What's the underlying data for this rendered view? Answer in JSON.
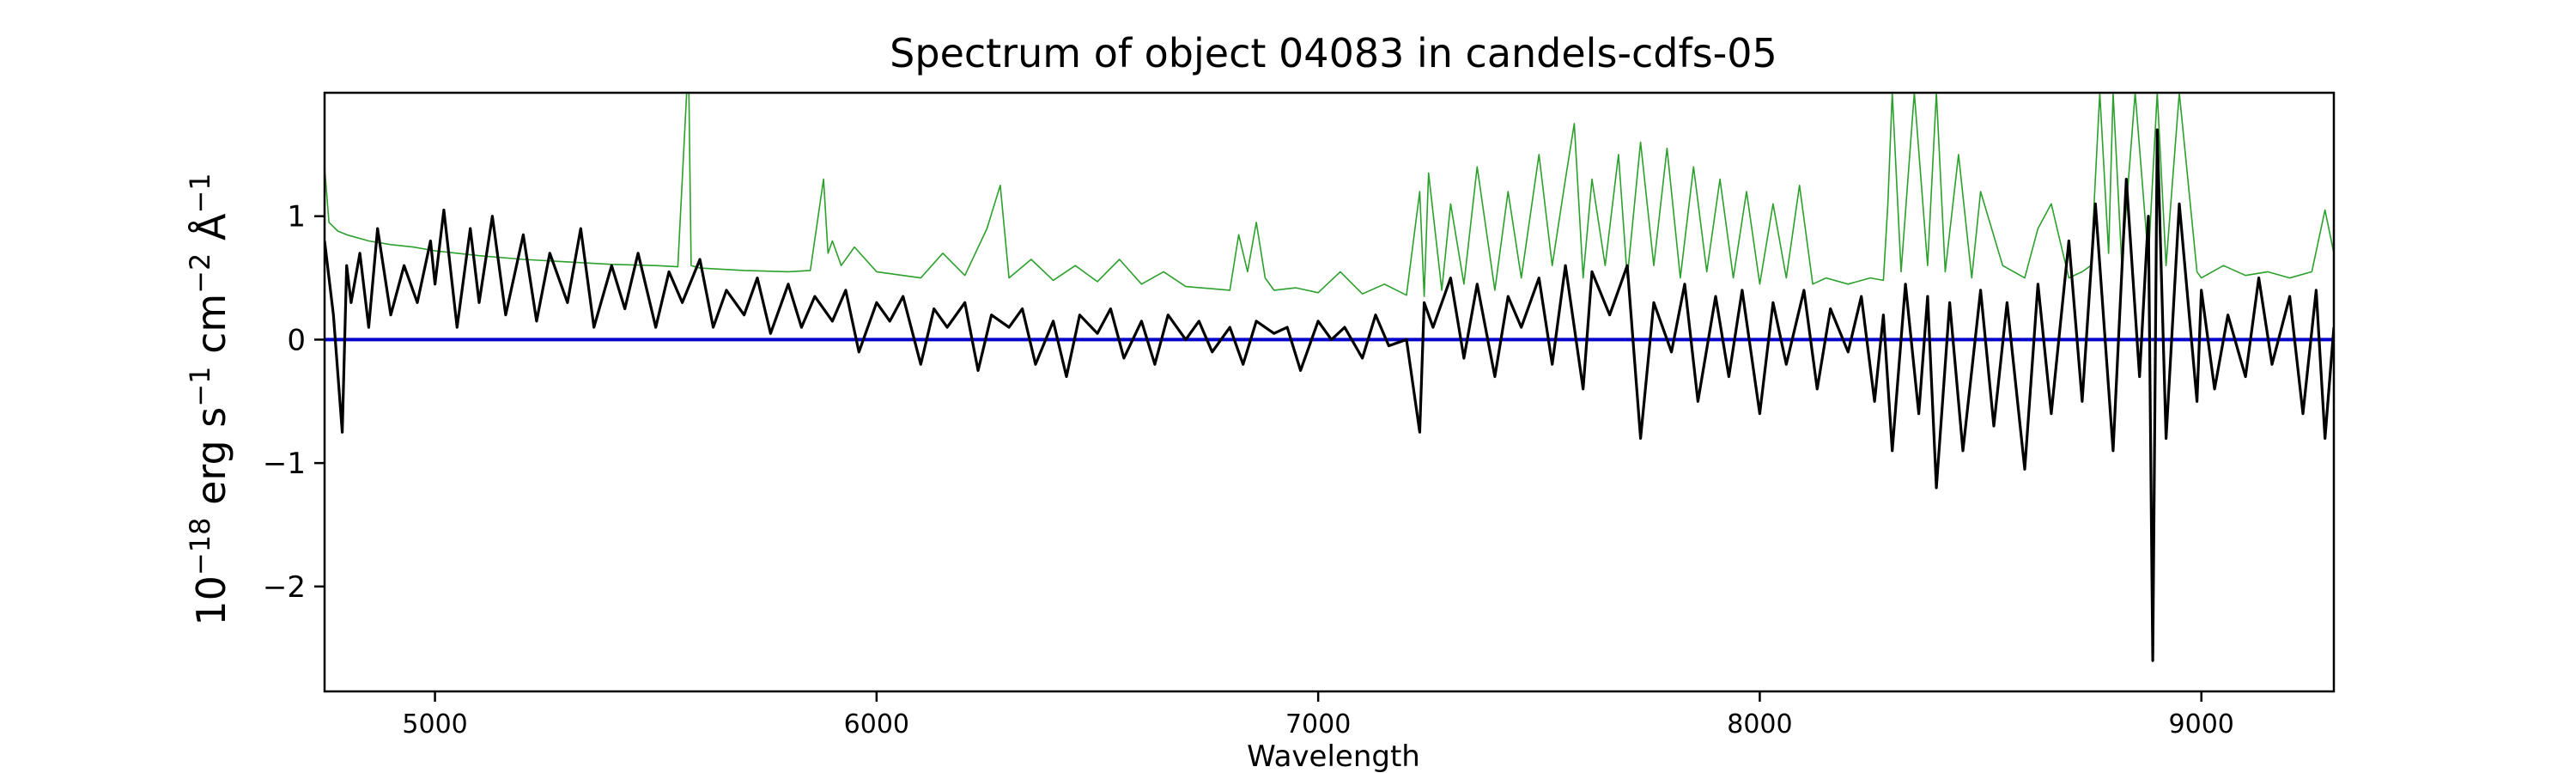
{
  "chart_data": {
    "type": "line",
    "title": "Spectrum of object 04083 in candels-cdfs-05",
    "xlabel": "Wavelength",
    "ylabel": {
      "base": "10",
      "base_exp": "−18",
      "erg": " erg s",
      "s_exp": "−1",
      "cm": " cm",
      "cm_exp": "−2",
      "ang": " Å",
      "ang_exp": "−1"
    },
    "xlim": [
      4750,
      9300
    ],
    "ylim": [
      -2.85,
      2.0
    ],
    "xticks": [
      5000,
      6000,
      7000,
      8000,
      9000
    ],
    "xtick_labels": [
      "5000",
      "6000",
      "7000",
      "8000",
      "9000"
    ],
    "yticks": [
      1,
      0,
      -1,
      -2
    ],
    "ytick_labels": [
      "1",
      "0",
      "−1",
      "−2"
    ],
    "grid": false,
    "colors": {
      "flux": "#000000",
      "error": "#2ca02c",
      "zero": "#0000cc"
    },
    "series": [
      {
        "style": "flux",
        "x": [
          4750,
          4770,
          4790,
          4800,
          4810,
          4830,
          4850,
          4870,
          4900,
          4930,
          4960,
          4990,
          5000,
          5020,
          5050,
          5080,
          5100,
          5130,
          5160,
          5200,
          5230,
          5260,
          5300,
          5330,
          5360,
          5400,
          5430,
          5460,
          5500,
          5530,
          5560,
          5600,
          5630,
          5660,
          5700,
          5730,
          5760,
          5800,
          5830,
          5860,
          5900,
          5930,
          5960,
          6000,
          6030,
          6060,
          6100,
          6130,
          6160,
          6200,
          6230,
          6260,
          6300,
          6330,
          6360,
          6400,
          6430,
          6460,
          6500,
          6530,
          6560,
          6600,
          6630,
          6660,
          6700,
          6730,
          6760,
          6800,
          6830,
          6860,
          6900,
          6930,
          6960,
          7000,
          7030,
          7060,
          7100,
          7130,
          7160,
          7200,
          7230,
          7240,
          7260,
          7300,
          7330,
          7360,
          7400,
          7430,
          7460,
          7500,
          7530,
          7560,
          7600,
          7620,
          7660,
          7700,
          7730,
          7760,
          7800,
          7830,
          7860,
          7900,
          7930,
          7960,
          8000,
          8030,
          8060,
          8100,
          8130,
          8160,
          8200,
          8230,
          8260,
          8280,
          8300,
          8330,
          8360,
          8380,
          8400,
          8430,
          8460,
          8500,
          8530,
          8560,
          8600,
          8630,
          8660,
          8700,
          8730,
          8760,
          8800,
          8830,
          8860,
          8880,
          8890,
          8900,
          8920,
          8950,
          8990,
          9000,
          9030,
          9060,
          9100,
          9130,
          9160,
          9200,
          9230,
          9260,
          9280,
          9300
        ],
        "y": [
          0.8,
          0.2,
          -0.75,
          0.6,
          0.3,
          0.7,
          0.1,
          0.9,
          0.2,
          0.6,
          0.3,
          0.8,
          0.45,
          1.05,
          0.1,
          0.9,
          0.3,
          1.0,
          0.2,
          0.85,
          0.15,
          0.7,
          0.3,
          0.9,
          0.1,
          0.6,
          0.25,
          0.7,
          0.1,
          0.55,
          0.3,
          0.65,
          0.1,
          0.4,
          0.2,
          0.5,
          0.05,
          0.45,
          0.1,
          0.35,
          0.15,
          0.4,
          -0.1,
          0.3,
          0.15,
          0.35,
          -0.2,
          0.25,
          0.1,
          0.3,
          -0.25,
          0.2,
          0.1,
          0.25,
          -0.2,
          0.15,
          -0.3,
          0.2,
          0.05,
          0.25,
          -0.15,
          0.15,
          -0.2,
          0.2,
          0.0,
          0.15,
          -0.1,
          0.1,
          -0.2,
          0.15,
          0.05,
          0.1,
          -0.25,
          0.15,
          0.0,
          0.1,
          -0.15,
          0.2,
          -0.05,
          0.0,
          -0.75,
          0.3,
          0.1,
          0.5,
          -0.15,
          0.45,
          -0.3,
          0.35,
          0.1,
          0.5,
          -0.2,
          0.6,
          -0.4,
          0.55,
          0.2,
          0.6,
          -0.8,
          0.3,
          -0.1,
          0.45,
          -0.5,
          0.35,
          -0.3,
          0.4,
          -0.6,
          0.3,
          -0.2,
          0.4,
          -0.4,
          0.25,
          -0.1,
          0.35,
          -0.5,
          0.2,
          -0.9,
          0.45,
          -0.6,
          0.35,
          -1.2,
          0.3,
          -0.9,
          0.4,
          -0.7,
          0.3,
          -1.05,
          0.45,
          -0.6,
          0.8,
          -0.5,
          1.1,
          -0.9,
          1.3,
          -0.3,
          1.0,
          -2.6,
          1.7,
          -0.8,
          1.1,
          -0.5,
          0.4,
          -0.4,
          0.2,
          -0.3,
          0.5,
          -0.2,
          0.35,
          -0.6,
          0.4,
          -0.8,
          0.1
        ]
      },
      {
        "style": "error",
        "x": [
          4750,
          4760,
          4780,
          4800,
          4850,
          4900,
          4950,
          5000,
          5100,
          5200,
          5300,
          5400,
          5500,
          5550,
          5570,
          5575,
          5580,
          5600,
          5700,
          5800,
          5850,
          5880,
          5890,
          5900,
          5920,
          5950,
          6000,
          6100,
          6150,
          6200,
          6250,
          6280,
          6300,
          6350,
          6400,
          6450,
          6500,
          6550,
          6600,
          6650,
          6700,
          6800,
          6820,
          6840,
          6860,
          6880,
          6900,
          6950,
          7000,
          7050,
          7100,
          7150,
          7200,
          7230,
          7240,
          7250,
          7280,
          7300,
          7330,
          7360,
          7400,
          7430,
          7460,
          7500,
          7530,
          7560,
          7580,
          7600,
          7620,
          7650,
          7680,
          7700,
          7730,
          7760,
          7790,
          7820,
          7850,
          7880,
          7910,
          7940,
          7970,
          8000,
          8030,
          8060,
          8090,
          8120,
          8150,
          8200,
          8250,
          8280,
          8290,
          8300,
          8320,
          8350,
          8380,
          8400,
          8420,
          8450,
          8480,
          8500,
          8550,
          8600,
          8630,
          8660,
          8680,
          8700,
          8730,
          8750,
          8770,
          8790,
          8800,
          8820,
          8850,
          8880,
          8900,
          8920,
          8950,
          8990,
          9000,
          9050,
          9100,
          9150,
          9200,
          9250,
          9280,
          9300
        ],
        "y": [
          1.4,
          0.95,
          0.88,
          0.85,
          0.8,
          0.77,
          0.75,
          0.72,
          0.68,
          0.65,
          0.63,
          0.61,
          0.6,
          0.59,
          2.0,
          2.0,
          0.6,
          0.58,
          0.56,
          0.55,
          0.56,
          1.3,
          0.7,
          0.8,
          0.6,
          0.75,
          0.55,
          0.5,
          0.7,
          0.52,
          0.9,
          1.25,
          0.5,
          0.65,
          0.48,
          0.6,
          0.47,
          0.65,
          0.45,
          0.55,
          0.43,
          0.4,
          0.85,
          0.55,
          0.95,
          0.5,
          0.4,
          0.42,
          0.38,
          0.55,
          0.37,
          0.45,
          0.36,
          1.2,
          0.35,
          1.35,
          0.4,
          1.1,
          0.45,
          1.4,
          0.4,
          1.2,
          0.5,
          1.5,
          0.6,
          1.3,
          1.75,
          0.5,
          1.3,
          0.6,
          1.5,
          0.5,
          1.6,
          0.6,
          1.55,
          0.5,
          1.4,
          0.55,
          1.3,
          0.5,
          1.2,
          0.45,
          1.1,
          0.5,
          1.25,
          0.45,
          0.5,
          0.45,
          0.5,
          0.48,
          1.1,
          2.0,
          0.55,
          2.0,
          0.6,
          2.0,
          0.55,
          1.5,
          0.5,
          1.2,
          0.6,
          0.5,
          0.9,
          1.1,
          0.8,
          0.5,
          0.55,
          0.6,
          2.0,
          0.7,
          2.0,
          0.6,
          2.0,
          0.65,
          2.0,
          0.6,
          2.0,
          0.55,
          0.5,
          0.6,
          0.52,
          0.55,
          0.5,
          0.55,
          1.05,
          0.7
        ]
      },
      {
        "style": "zero",
        "x": [
          4750,
          9300
        ],
        "y": [
          0.0,
          0.0
        ]
      }
    ]
  }
}
